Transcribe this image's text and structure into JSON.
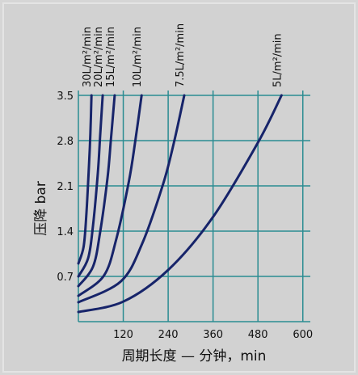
{
  "chart_data": {
    "type": "line",
    "xlabel": "周期长度 — 分钟，min",
    "ylabel": "压降 bar",
    "xlim": [
      0,
      620
    ],
    "ylim": [
      0,
      3.5
    ],
    "xticks": [
      120,
      240,
      360,
      480,
      600
    ],
    "yticks": [
      0.7,
      1.4,
      2.1,
      2.8,
      3.5
    ],
    "grid": true,
    "series": [
      {
        "name": "30L/m²/min",
        "color": "#17246a",
        "x": [
          0,
          14,
          21,
          28,
          32,
          35
        ],
        "values": [
          0.9,
          1.16,
          1.63,
          2.38,
          2.9,
          3.5
        ]
      },
      {
        "name": "20L/m²/min",
        "color": "#17246a",
        "x": [
          0,
          26,
          39,
          52,
          58,
          65
        ],
        "values": [
          0.7,
          0.98,
          1.48,
          2.3,
          2.86,
          3.5
        ]
      },
      {
        "name": "15L/m²/min",
        "color": "#17246a",
        "x": [
          0,
          39,
          58,
          78,
          87,
          97
        ],
        "values": [
          0.55,
          0.85,
          1.38,
          2.23,
          2.82,
          3.5
        ]
      },
      {
        "name": "10L/m²/min",
        "color": "#17246a",
        "x": [
          0,
          68,
          101,
          135,
          152,
          169
        ],
        "values": [
          0.4,
          0.71,
          1.27,
          2.17,
          2.79,
          3.5
        ]
      },
      {
        "name": "7.5L/m²/min",
        "color": "#17246a",
        "x": [
          0,
          113,
          170,
          226,
          255,
          283
        ],
        "values": [
          0.3,
          0.62,
          1.2,
          2.12,
          2.76,
          3.5
        ]
      },
      {
        "name": "5L/m²/min",
        "color": "#17246a",
        "x": [
          0,
          120,
          240,
          360,
          480,
          543
        ],
        "values": [
          0.15,
          0.31,
          0.8,
          1.62,
          2.77,
          3.5
        ]
      }
    ]
  }
}
